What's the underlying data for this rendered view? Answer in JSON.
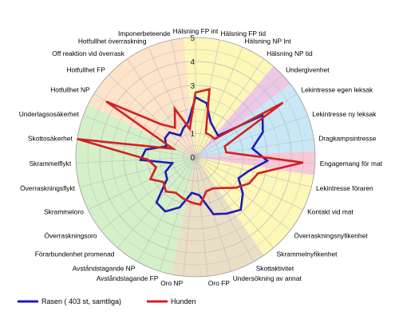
{
  "chart_data": {
    "type": "radar",
    "title": "",
    "categories": [
      "Hälsning FP int",
      "Hälsning FP tid",
      "Hälsning NP Int",
      "Hälsning NP tid",
      "Undergivenhet",
      "Lekintresse egen leksak",
      "Lekintresse ny leksak",
      "Dragkampsintresse",
      "Engagemang för mat",
      "Lekintresse föraren",
      "Kontakt vid mat",
      "Överraskningsnyfikenhet",
      "Skrammelnyfikenhet",
      "Skottaktivitet",
      "Undersökning av annat",
      "Oro FP",
      "Oro NP",
      "Avståndstagande FP",
      "Avståndstagande NP",
      "Förarbundenhet promenad",
      "Överraskningsoro",
      "Skrammeloro",
      "Överraskningsflykt",
      "Skrammelflykt",
      "Skottosäkerhet",
      "Underlagsosäkerhet",
      "Hotfullhet NP",
      "Hotfullhet FP",
      "Off reaktion vid överrask",
      "Hotfullhet överraskning",
      "Imponerbeteende"
    ],
    "rlim": [
      0,
      5
    ],
    "ticks": [
      "0",
      "1",
      "2",
      "3",
      "4",
      "5"
    ],
    "series": [
      {
        "name": "Rasen ( 403 st, samtliga)",
        "color": "#1c1cb4",
        "values": [
          2.5,
          2.3,
          1.6,
          1.4,
          1.3,
          3.3,
          3.0,
          2.4,
          3.0,
          2.3,
          2.0,
          2.5,
          2.9,
          2.7,
          2.5,
          1.6,
          1.5,
          2.2,
          2.6,
          2.5,
          1.5,
          1.4,
          1.0,
          2.3,
          2.1,
          1.3,
          1.5,
          1.5,
          1.1,
          1.3,
          1.5
        ]
      },
      {
        "name": "Hunden",
        "color": "#d42020",
        "values": [
          2.7,
          2.9,
          1.1,
          1.1,
          1.1,
          4.3,
          1.3,
          1.3,
          4.5,
          2.7,
          2.5,
          2.1,
          1.7,
          1.5,
          1.5,
          2.0,
          1.9,
          1.8,
          1.7,
          1.9,
          1.7,
          2.1,
          1.7,
          2.0,
          5.0,
          1.0,
          4.4,
          2.0,
          1.5,
          2.2,
          1.2
        ]
      }
    ],
    "sectors": [
      {
        "from": 0,
        "to": 3,
        "color": "#fdf7b8"
      },
      {
        "from": 4,
        "to": 4,
        "color": "#ecc7e6"
      },
      {
        "from": 5,
        "to": 7,
        "color": "#c8e8f6"
      },
      {
        "from": 8,
        "to": 8,
        "color": "#f6c8da"
      },
      {
        "from": 9,
        "to": 12,
        "color": "#fdf7b8"
      },
      {
        "from": 13,
        "to": 16,
        "color": "#eadfc5"
      },
      {
        "from": 17,
        "to": 25,
        "color": "#d4f0c8"
      },
      {
        "from": 26,
        "to": 30,
        "color": "#fde3c8"
      }
    ],
    "legend_position": "bottom-left"
  }
}
